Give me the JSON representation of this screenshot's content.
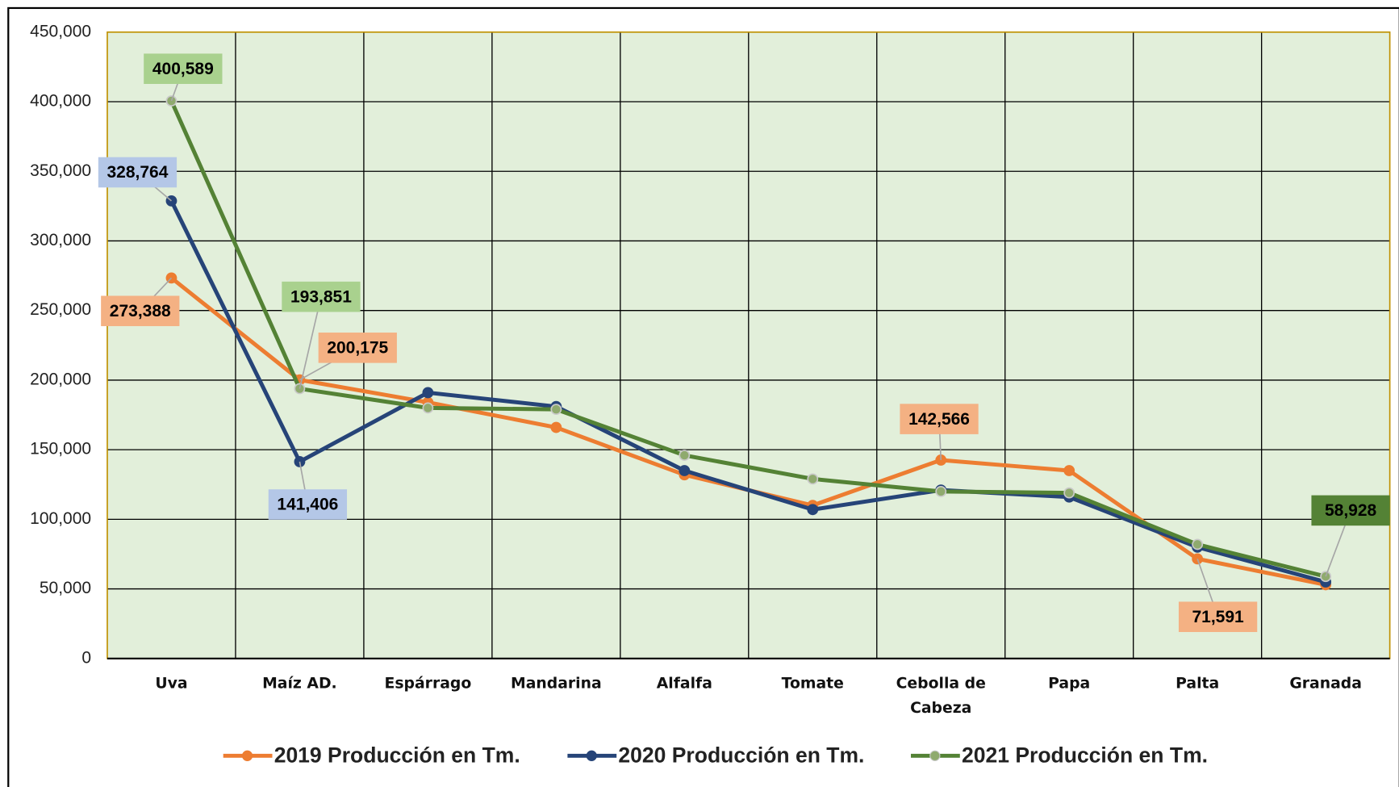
{
  "chart_data": {
    "type": "line",
    "categories": [
      "Uva",
      "Maíz AD.",
      "Espárrago",
      "Mandarina",
      "Alfalfa",
      "Tomate",
      "Cebolla de Cabeza",
      "Papa",
      "Palta",
      "Granada"
    ],
    "series": [
      {
        "name": "2019 Producción en Tm.",
        "color": "#ed7d31",
        "label_bg": "#f4b183",
        "values": [
          273388,
          200175,
          184000,
          166000,
          132000,
          110000,
          142566,
          135000,
          71591,
          53000
        ],
        "value_labels": [
          "273,388",
          "200,175",
          null,
          null,
          null,
          null,
          "142,566",
          null,
          "71,591",
          null
        ]
      },
      {
        "name": "2020 Producción en Tm.",
        "color": "#264478",
        "label_bg": "#b4c7e7",
        "values": [
          328764,
          141406,
          191000,
          181000,
          135000,
          107000,
          121000,
          116000,
          80000,
          55000
        ],
        "value_labels": [
          "328,764",
          "141,406",
          null,
          null,
          null,
          null,
          null,
          null,
          null,
          null
        ]
      },
      {
        "name": "2021 Producción en Tm.",
        "color": "#548235",
        "label_bg": "#a9d18e",
        "values": [
          400589,
          193851,
          180000,
          179000,
          146000,
          129000,
          120000,
          119000,
          82000,
          58928
        ],
        "value_labels": [
          "400,589",
          "193,851",
          null,
          null,
          null,
          null,
          null,
          null,
          null,
          "58,928"
        ]
      }
    ],
    "ylim": [
      0,
      450000
    ],
    "yticks": [
      0,
      {
        "value": 50000,
        "label": "50,000"
      },
      {
        "value": 100000,
        "label": "100,000"
      },
      {
        "value": 150000,
        "label": "150,000"
      },
      {
        "value": 200000,
        "label": "200,000"
      },
      {
        "value": 250000,
        "label": "250,000"
      },
      {
        "value": 300000,
        "label": "300,000"
      },
      {
        "value": 350000,
        "label": "350,000"
      },
      {
        "value": 400000,
        "label": "400,000"
      },
      {
        "value": 450000,
        "label": "450,000"
      }
    ],
    "grid": true,
    "plot_bg": "#e2efda",
    "legend": "bottom"
  }
}
